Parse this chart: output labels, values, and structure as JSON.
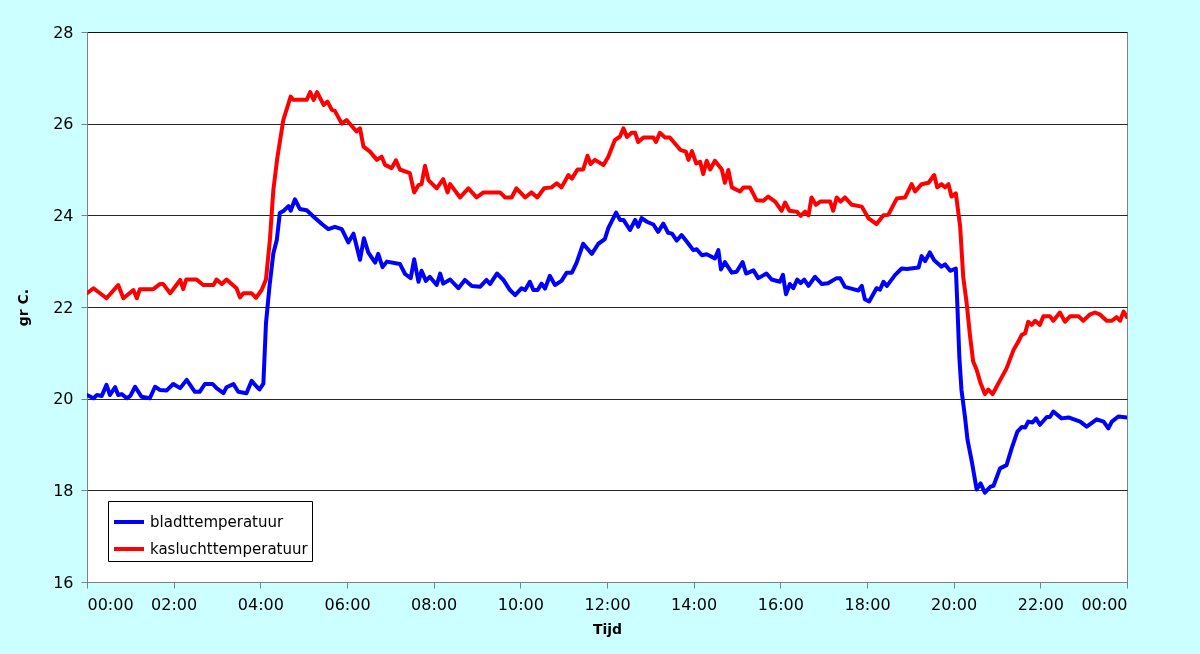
{
  "chart_data": {
    "type": "line",
    "xlabel": "Tijd",
    "ylabel": "gr C.",
    "xlim": [
      0,
      24
    ],
    "xticks": [
      {
        "value": 0,
        "label": "00:00"
      },
      {
        "value": 2,
        "label": "02:00"
      },
      {
        "value": 4,
        "label": "04:00"
      },
      {
        "value": 6,
        "label": "06:00"
      },
      {
        "value": 8,
        "label": "08:00"
      },
      {
        "value": 10,
        "label": "10:00"
      },
      {
        "value": 12,
        "label": "12:00"
      },
      {
        "value": 14,
        "label": "14:00"
      },
      {
        "value": 16,
        "label": "16:00"
      },
      {
        "value": 18,
        "label": "18:00"
      },
      {
        "value": 20,
        "label": "20:00"
      },
      {
        "value": 22,
        "label": "22:00"
      },
      {
        "value": 24,
        "label": "00:00"
      }
    ],
    "ylim": [
      16,
      28
    ],
    "yticks": [
      16,
      18,
      20,
      22,
      24,
      26,
      28
    ],
    "grid": "y",
    "legend": "bottom left",
    "line_style": "solid",
    "series": [
      {
        "name": "bladttemperatuur",
        "color": "#0000ff",
        "x": [
          0,
          0.15,
          0.23,
          0.34,
          0.45,
          0.53,
          0.65,
          0.72,
          0.8,
          0.92,
          1.0,
          1.11,
          1.26,
          1.45,
          1.57,
          1.68,
          1.84,
          1.99,
          2.15,
          2.3,
          2.49,
          2.6,
          2.72,
          2.9,
          2.99,
          3.15,
          3.22,
          3.38,
          3.49,
          3.68,
          3.8,
          3.88,
          3.98,
          4.07,
          4.13,
          4.21,
          4.3,
          4.38,
          4.45,
          4.54,
          4.65,
          4.7,
          4.8,
          4.91,
          5.07,
          5.23,
          5.42,
          5.57,
          5.72,
          5.88,
          6.03,
          6.15,
          6.3,
          6.39,
          6.49,
          6.65,
          6.72,
          6.82,
          6.92,
          7.22,
          7.34,
          7.47,
          7.55,
          7.65,
          7.72,
          7.82,
          7.91,
          8.07,
          8.15,
          8.22,
          8.38,
          8.57,
          8.72,
          8.88,
          9.07,
          9.22,
          9.3,
          9.46,
          9.61,
          9.76,
          9.88,
          10.03,
          10.11,
          10.22,
          10.3,
          10.4,
          10.49,
          10.57,
          10.68,
          10.8,
          10.95,
          11.07,
          11.19,
          11.3,
          11.45,
          11.65,
          11.8,
          11.95,
          12.03,
          12.21,
          12.3,
          12.38,
          12.53,
          12.65,
          12.72,
          12.8,
          12.92,
          13.07,
          13.18,
          13.3,
          13.41,
          13.5,
          13.61,
          13.72,
          13.84,
          13.99,
          14.07,
          14.19,
          14.3,
          14.49,
          14.57,
          14.63,
          14.72,
          14.88,
          14.99,
          15.13,
          15.21,
          15.38,
          15.49,
          15.68,
          15.8,
          15.99,
          16.06,
          16.13,
          16.22,
          16.3,
          16.39,
          16.47,
          16.55,
          16.65,
          16.8,
          16.96,
          17.1,
          17.3,
          17.38,
          17.49,
          17.68,
          17.8,
          17.88,
          17.95,
          18.05,
          18.22,
          18.3,
          18.38,
          18.46,
          18.65,
          18.8,
          18.92,
          19.19,
          19.26,
          19.34,
          19.45,
          19.55,
          19.72,
          19.8,
          19.92,
          20.05,
          20.09,
          20.13,
          20.18,
          20.26,
          20.32,
          20.42,
          20.53,
          20.62,
          20.72,
          20.85,
          20.92,
          21.07,
          21.22,
          21.34,
          21.47,
          21.57,
          21.65,
          21.72,
          21.82,
          21.9,
          21.99,
          22.15,
          22.22,
          22.3,
          22.49,
          22.65,
          22.92,
          23.07,
          23.3,
          23.46,
          23.57,
          23.65,
          23.8,
          24.0
        ],
        "values": [
          20.08,
          20.01,
          20.08,
          20.06,
          20.3,
          20.08,
          20.25,
          20.08,
          20.1,
          20.01,
          20.06,
          20.26,
          20.04,
          20.01,
          20.26,
          20.19,
          20.18,
          20.32,
          20.23,
          20.41,
          20.15,
          20.15,
          20.32,
          20.32,
          20.23,
          20.12,
          20.25,
          20.32,
          20.15,
          20.12,
          20.39,
          20.3,
          20.2,
          20.33,
          21.64,
          22.44,
          23.17,
          23.46,
          24.05,
          24.1,
          24.2,
          24.1,
          24.35,
          24.14,
          24.11,
          23.97,
          23.81,
          23.7,
          23.75,
          23.7,
          23.41,
          23.6,
          23.03,
          23.5,
          23.19,
          22.97,
          23.16,
          22.87,
          22.99,
          22.94,
          22.72,
          22.63,
          23.04,
          22.55,
          22.79,
          22.57,
          22.66,
          22.48,
          22.73,
          22.51,
          22.6,
          22.41,
          22.59,
          22.46,
          22.44,
          22.59,
          22.5,
          22.73,
          22.59,
          22.37,
          22.26,
          22.41,
          22.37,
          22.55,
          22.37,
          22.37,
          22.51,
          22.4,
          22.68,
          22.48,
          22.57,
          22.75,
          22.75,
          22.97,
          23.38,
          23.16,
          23.38,
          23.48,
          23.72,
          24.06,
          23.9,
          23.9,
          23.68,
          23.9,
          23.75,
          23.94,
          23.86,
          23.8,
          23.64,
          23.82,
          23.62,
          23.6,
          23.45,
          23.57,
          23.43,
          23.24,
          23.26,
          23.13,
          23.15,
          23.06,
          23.24,
          22.82,
          22.98,
          22.75,
          22.77,
          22.98,
          22.73,
          22.8,
          22.63,
          22.73,
          22.6,
          22.55,
          22.7,
          22.28,
          22.5,
          22.41,
          22.6,
          22.52,
          22.6,
          22.46,
          22.66,
          22.5,
          22.52,
          22.63,
          22.63,
          22.44,
          22.39,
          22.36,
          22.46,
          22.17,
          22.12,
          22.41,
          22.38,
          22.55,
          22.46,
          22.7,
          22.84,
          22.83,
          22.86,
          23.11,
          23.0,
          23.19,
          23.02,
          22.88,
          22.93,
          22.79,
          22.84,
          21.93,
          20.92,
          20.19,
          19.61,
          19.1,
          18.62,
          18.02,
          18.15,
          17.95,
          18.08,
          18.1,
          18.48,
          18.55,
          18.92,
          19.28,
          19.38,
          19.37,
          19.5,
          19.48,
          19.57,
          19.43,
          19.6,
          19.6,
          19.72,
          19.57,
          19.59,
          19.5,
          19.39,
          19.55,
          19.5,
          19.35,
          19.5,
          19.61,
          19.59
        ]
      },
      {
        "name": "kasluchttemperatuur",
        "color": "#ff0000",
        "x": [
          0,
          0.15,
          0.45,
          0.72,
          0.84,
          1.07,
          1.15,
          1.22,
          1.53,
          1.68,
          1.76,
          1.92,
          2.15,
          2.22,
          2.29,
          2.53,
          2.68,
          2.92,
          2.99,
          3.11,
          3.22,
          3.45,
          3.53,
          3.61,
          3.8,
          3.9,
          4.03,
          4.13,
          4.22,
          4.3,
          4.39,
          4.53,
          4.7,
          4.76,
          5.07,
          5.15,
          5.23,
          5.31,
          5.46,
          5.55,
          5.65,
          5.72,
          5.88,
          5.99,
          6.22,
          6.3,
          6.38,
          6.53,
          6.69,
          6.8,
          6.88,
          7.03,
          7.13,
          7.22,
          7.45,
          7.55,
          7.65,
          7.72,
          7.8,
          7.88,
          8.07,
          8.22,
          8.32,
          8.38,
          8.61,
          8.8,
          8.99,
          9.15,
          9.53,
          9.65,
          9.8,
          9.91,
          10.11,
          10.26,
          10.39,
          10.55,
          10.72,
          10.84,
          10.95,
          11.11,
          11.19,
          11.32,
          11.45,
          11.55,
          11.62,
          11.72,
          11.92,
          12.03,
          12.18,
          12.3,
          12.38,
          12.46,
          12.57,
          12.65,
          12.72,
          12.84,
          13.07,
          13.13,
          13.22,
          13.34,
          13.45,
          13.69,
          13.82,
          13.88,
          13.96,
          14.06,
          14.15,
          14.22,
          14.3,
          14.38,
          14.49,
          14.65,
          14.72,
          14.8,
          14.88,
          15.07,
          15.15,
          15.3,
          15.45,
          15.61,
          15.72,
          15.88,
          16.03,
          16.11,
          16.21,
          16.38,
          16.47,
          16.57,
          16.65,
          16.72,
          16.82,
          16.92,
          17.15,
          17.22,
          17.3,
          17.39,
          17.49,
          17.65,
          17.88,
          18.03,
          18.22,
          18.38,
          18.49,
          18.61,
          18.69,
          18.88,
          19.03,
          19.11,
          19.26,
          19.42,
          19.55,
          19.62,
          19.72,
          19.8,
          19.88,
          19.95,
          20.05,
          20.15,
          20.22,
          20.3,
          20.38,
          20.45,
          20.53,
          20.62,
          20.72,
          20.8,
          20.9,
          20.99,
          21.07,
          21.22,
          21.38,
          21.49,
          21.57,
          21.65,
          21.72,
          21.8,
          21.88,
          21.99,
          22.07,
          22.22,
          22.3,
          22.45,
          22.57,
          22.69,
          22.88,
          22.99,
          23.15,
          23.26,
          23.37,
          23.53,
          23.65,
          23.76,
          23.84,
          23.92,
          24.0
        ],
        "values": [
          22.3,
          22.41,
          22.19,
          22.48,
          22.19,
          22.37,
          22.19,
          22.39,
          22.39,
          22.5,
          22.5,
          22.3,
          22.59,
          22.39,
          22.6,
          22.6,
          22.48,
          22.48,
          22.6,
          22.5,
          22.6,
          22.41,
          22.21,
          22.3,
          22.3,
          22.2,
          22.37,
          22.6,
          23.46,
          24.55,
          25.24,
          26.08,
          26.59,
          26.52,
          26.52,
          26.69,
          26.52,
          26.69,
          26.41,
          26.48,
          26.3,
          26.28,
          26.0,
          26.08,
          25.83,
          25.9,
          25.5,
          25.39,
          25.21,
          25.28,
          25.1,
          25.03,
          25.2,
          25.0,
          24.92,
          24.5,
          24.66,
          24.68,
          25.08,
          24.77,
          24.59,
          24.79,
          24.5,
          24.68,
          24.39,
          24.59,
          24.39,
          24.5,
          24.5,
          24.39,
          24.39,
          24.59,
          24.39,
          24.5,
          24.39,
          24.59,
          24.61,
          24.7,
          24.61,
          24.88,
          24.8,
          25.0,
          25.0,
          25.3,
          25.12,
          25.21,
          25.1,
          25.28,
          25.64,
          25.72,
          25.9,
          25.71,
          25.8,
          25.8,
          25.6,
          25.7,
          25.7,
          25.6,
          25.8,
          25.7,
          25.7,
          25.43,
          25.39,
          25.21,
          25.4,
          25.13,
          25.17,
          24.9,
          25.19,
          25.0,
          25.19,
          25.0,
          24.71,
          24.99,
          24.61,
          24.52,
          24.61,
          24.61,
          24.33,
          24.32,
          24.41,
          24.3,
          24.1,
          24.28,
          24.1,
          24.08,
          23.99,
          24.08,
          24.0,
          24.39,
          24.23,
          24.3,
          24.3,
          24.1,
          24.39,
          24.3,
          24.39,
          24.23,
          24.19,
          23.94,
          23.81,
          24.0,
          24.01,
          24.23,
          24.37,
          24.39,
          24.68,
          24.52,
          24.68,
          24.71,
          24.88,
          24.61,
          24.68,
          24.61,
          24.68,
          24.41,
          24.48,
          23.75,
          22.66,
          22.08,
          21.35,
          20.81,
          20.63,
          20.34,
          20.1,
          20.2,
          20.1,
          20.26,
          20.4,
          20.66,
          21.06,
          21.24,
          21.39,
          21.43,
          21.68,
          21.61,
          21.7,
          21.61,
          21.8,
          21.8,
          21.7,
          21.88,
          21.68,
          21.8,
          21.8,
          21.7,
          21.84,
          21.88,
          21.84,
          21.7,
          21.7,
          21.78,
          21.7,
          21.9,
          21.78
        ]
      }
    ]
  }
}
